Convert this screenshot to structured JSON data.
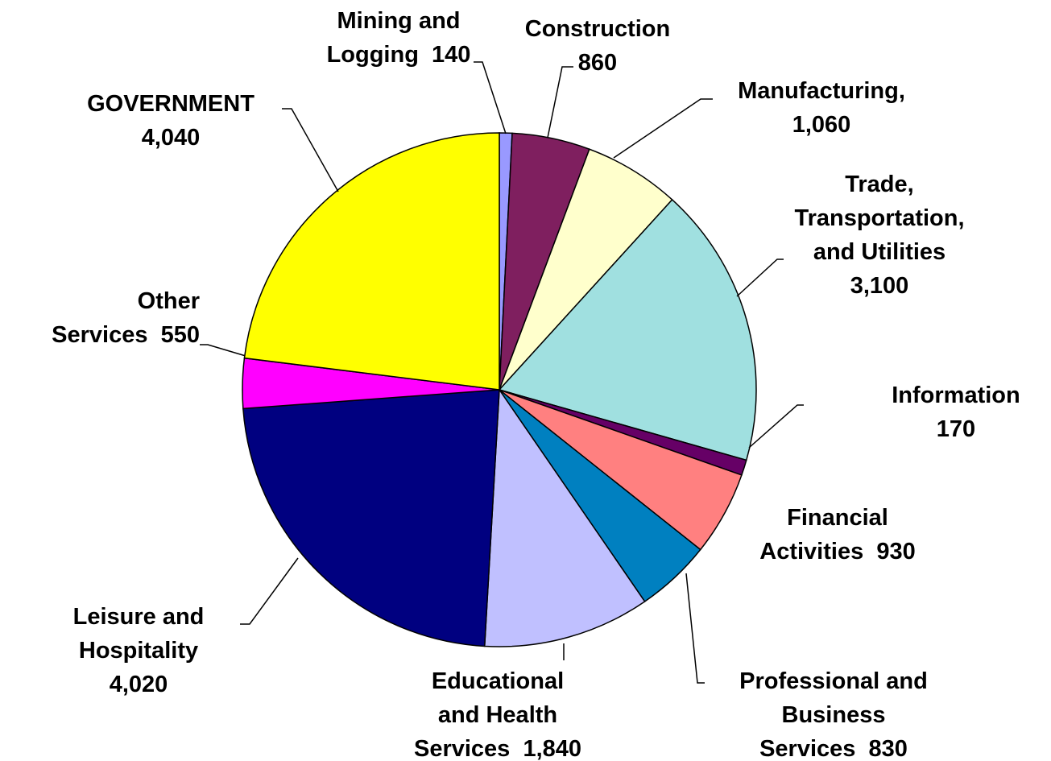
{
  "chart_data": {
    "type": "pie",
    "categories": [
      "Mining and\nLogging",
      "Construction",
      "Manufacturing,",
      "Trade,\nTransportation,\nand Utilities",
      "Information",
      "Financial\nActivities",
      "Professional and\nBusiness\nServices",
      "Educational\nand Health\nServices",
      "Leisure and\nHospitality",
      "Other\nServices",
      "GOVERNMENT"
    ],
    "values": [
      140,
      860,
      1060,
      3100,
      170,
      930,
      830,
      1840,
      4020,
      550,
      4040
    ],
    "value_labels": [
      "140",
      "860",
      "1,060",
      "3,100",
      "170",
      "930",
      "830",
      "1,840",
      "4,020",
      "550",
      "4,040"
    ],
    "colors": [
      "#9999ff",
      "#7f1f5f",
      "#ffffcc",
      "#a0e0e0",
      "#660066",
      "#ff8080",
      "#0080c0",
      "#c0c0ff",
      "#000080",
      "#ff00ff",
      "#ffff00"
    ]
  }
}
